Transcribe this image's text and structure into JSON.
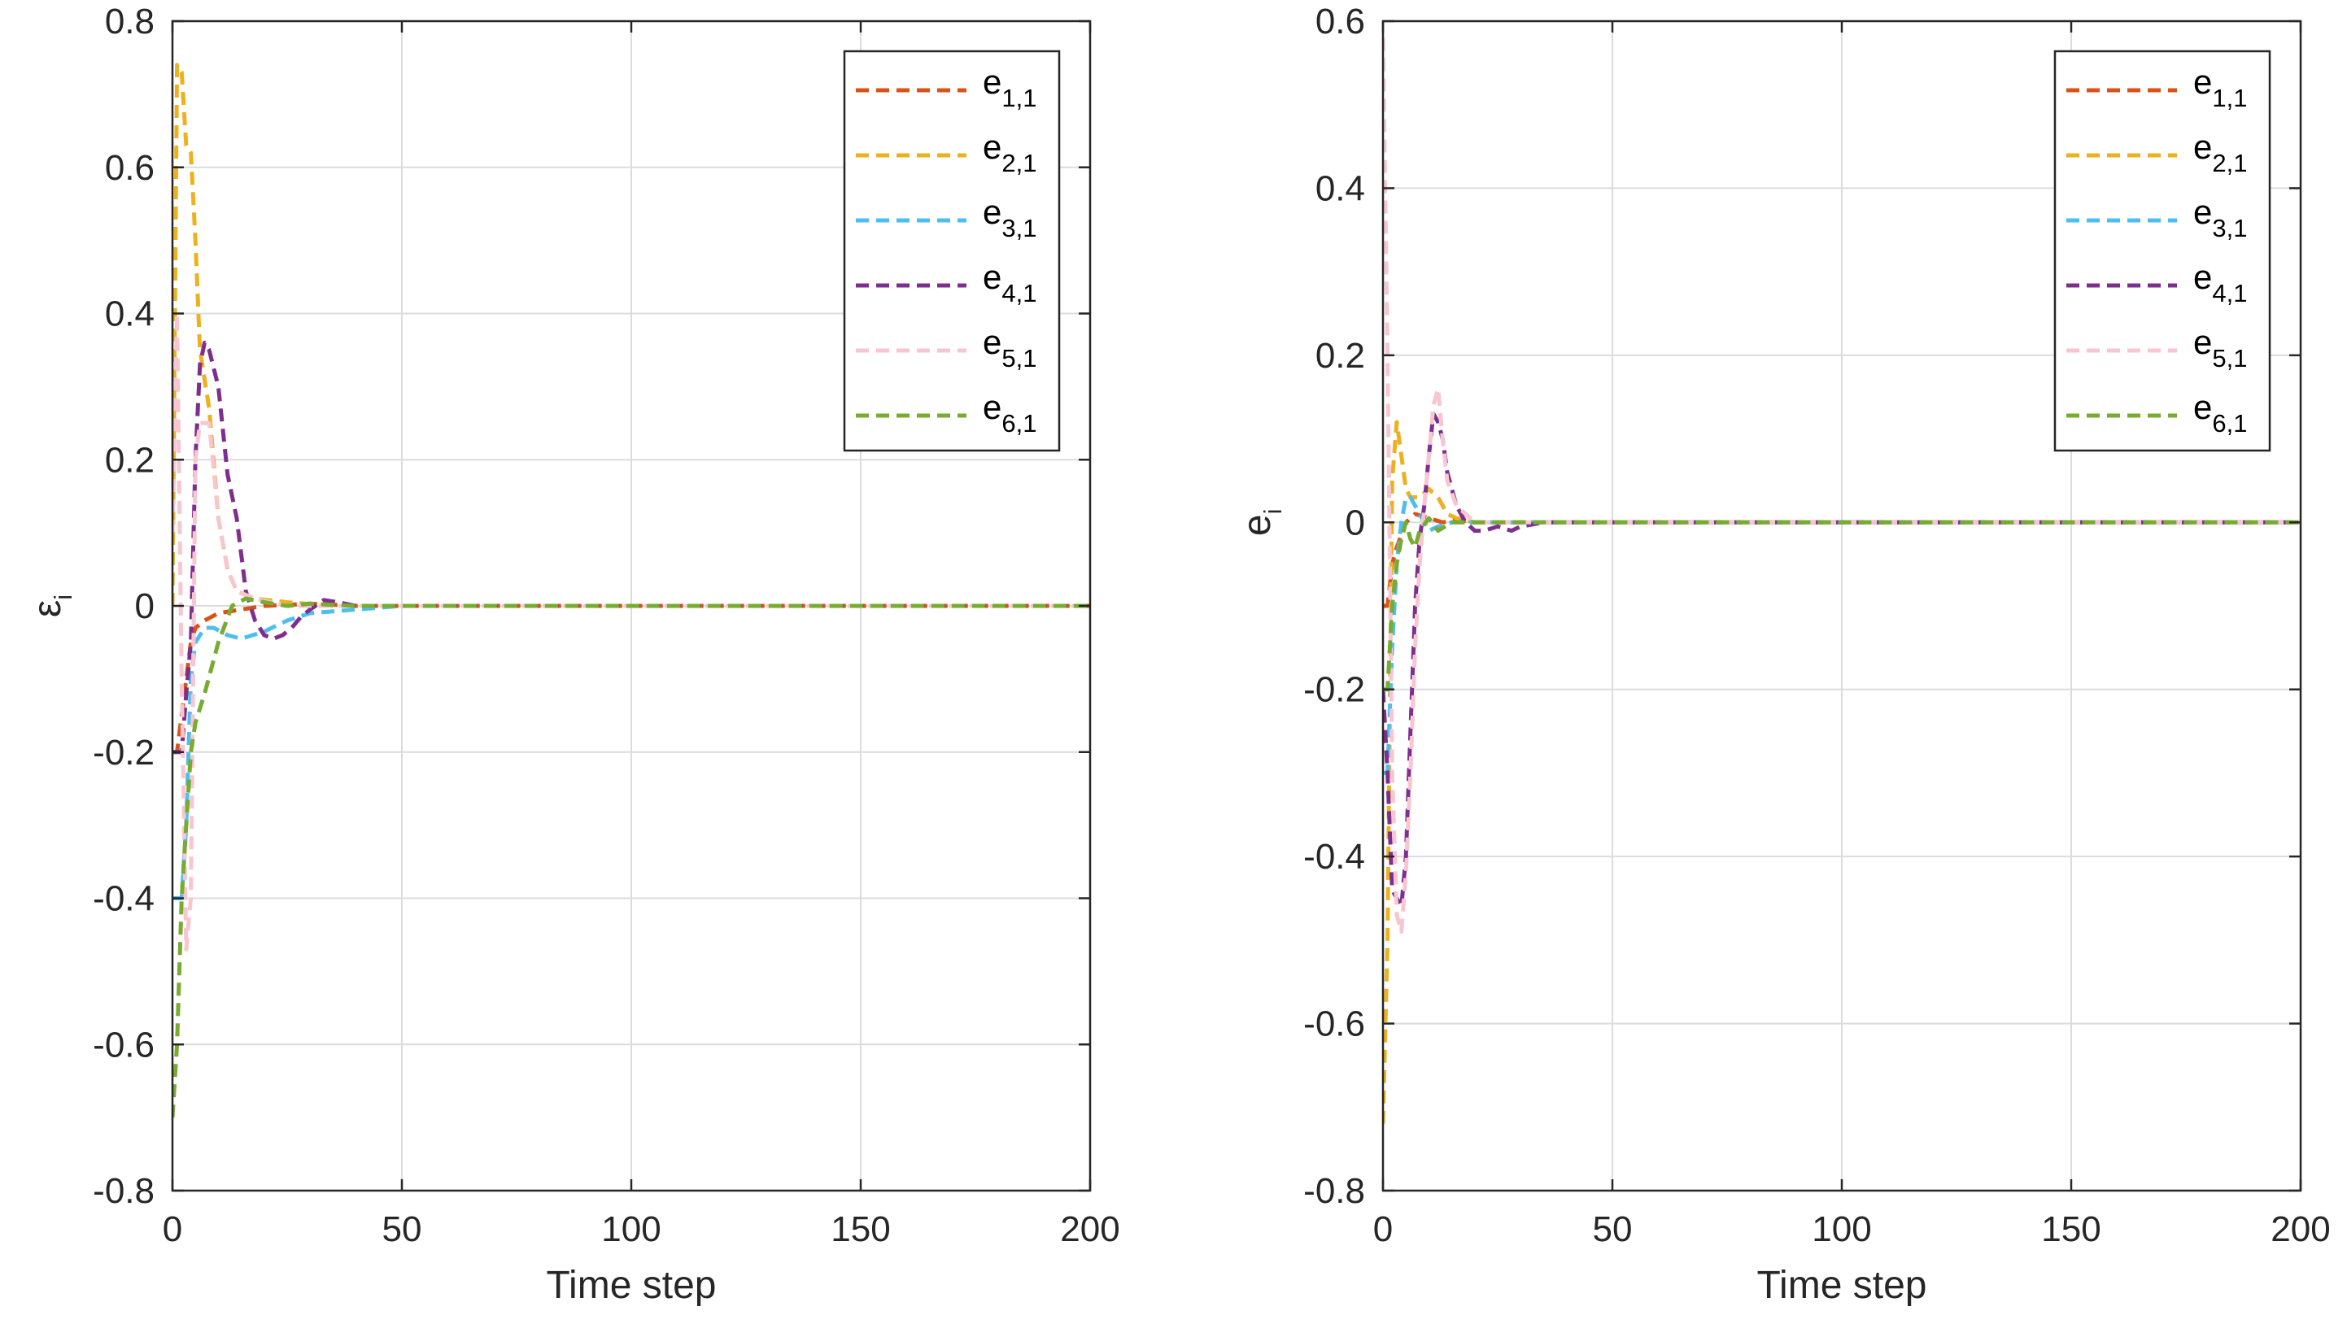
{
  "chart_data": [
    {
      "type": "line",
      "xlabel": "Time step",
      "ylabel": "ε",
      "ylabel_sub": "i",
      "xlim": [
        0,
        200
      ],
      "ylim": [
        -0.8,
        0.8
      ],
      "xticks": [
        0,
        50,
        100,
        150,
        200
      ],
      "xtick_labels": [
        "0",
        "50",
        "100",
        "150",
        "200"
      ],
      "yticks": [
        -0.8,
        -0.6,
        -0.4,
        -0.2,
        0,
        0.2,
        0.4,
        0.6,
        0.8
      ],
      "ytick_labels": [
        "-0.8",
        "-0.6",
        "-0.4",
        "-0.2",
        "0",
        "0.2",
        "0.4",
        "0.6",
        "0.8"
      ],
      "grid": true,
      "legend_position": "top-right",
      "series": [
        {
          "name": "e",
          "sub": "1,1",
          "color": "#D95319",
          "x": [
            0,
            1,
            2,
            3,
            4,
            5,
            7,
            10,
            15,
            20,
            30,
            40,
            50,
            200
          ],
          "y": [
            -0.2,
            -0.2,
            -0.15,
            -0.1,
            -0.05,
            -0.03,
            -0.02,
            -0.01,
            -0.005,
            0,
            0.003,
            0,
            0,
            0
          ]
        },
        {
          "name": "e",
          "sub": "2,1",
          "color": "#EDB120",
          "x": [
            0,
            1,
            2,
            3,
            4,
            5,
            6,
            8,
            10,
            12,
            14,
            18,
            25,
            35,
            50,
            200
          ],
          "y": [
            0,
            0.74,
            0.73,
            0.63,
            0.62,
            0.5,
            0.35,
            0.27,
            0.12,
            0.05,
            0.02,
            0.01,
            0.005,
            0,
            0,
            0
          ]
        },
        {
          "name": "e",
          "sub": "3,1",
          "color": "#4DBEEE",
          "x": [
            0,
            1,
            2,
            3,
            4,
            5,
            7,
            9,
            12,
            15,
            20,
            25,
            30,
            40,
            50,
            200
          ],
          "y": [
            -0.4,
            -0.4,
            -0.4,
            -0.3,
            -0.1,
            -0.05,
            -0.03,
            -0.03,
            -0.04,
            -0.045,
            -0.035,
            -0.02,
            -0.01,
            -0.005,
            0,
            0
          ]
        },
        {
          "name": "e",
          "sub": "4,1",
          "color": "#7E2F8E",
          "x": [
            0,
            2,
            3,
            4,
            5,
            6,
            7,
            8,
            10,
            12,
            14,
            16,
            18,
            20,
            22,
            24,
            26,
            28,
            30,
            33,
            36,
            40,
            50,
            200
          ],
          "y": [
            -0.2,
            -0.2,
            -0.12,
            -0.05,
            0.2,
            0.33,
            0.36,
            0.35,
            0.3,
            0.18,
            0.12,
            0.02,
            -0.02,
            -0.04,
            -0.045,
            -0.04,
            -0.03,
            -0.015,
            -0.005,
            0.008,
            0.005,
            0,
            0,
            0
          ]
        },
        {
          "name": "e",
          "sub": "5,1",
          "color": "#F7C6D0",
          "x": [
            0,
            1,
            2,
            3,
            4,
            5,
            6,
            8,
            10,
            12,
            14,
            18,
            25,
            35,
            50,
            200
          ],
          "y": [
            0.1,
            0.4,
            -0.1,
            -0.47,
            -0.4,
            0.2,
            0.25,
            0.25,
            0.12,
            0.05,
            0.02,
            0.01,
            0,
            0,
            0,
            0
          ]
        },
        {
          "name": "e",
          "sub": "6,1",
          "color": "#77AC30",
          "x": [
            0,
            1,
            2,
            3,
            4,
            5,
            7,
            10,
            13,
            16,
            20,
            25,
            30,
            40,
            50,
            200
          ],
          "y": [
            -0.7,
            -0.6,
            -0.4,
            -0.3,
            -0.2,
            -0.16,
            -0.12,
            -0.05,
            0,
            0.01,
            0.005,
            0,
            0.003,
            0,
            0,
            0
          ]
        }
      ]
    },
    {
      "type": "line",
      "xlabel": "Time step",
      "ylabel": "e",
      "ylabel_sub": "i",
      "xlim": [
        0,
        200
      ],
      "ylim": [
        -0.8,
        0.6
      ],
      "xticks": [
        0,
        50,
        100,
        150,
        200
      ],
      "xtick_labels": [
        "0",
        "50",
        "100",
        "150",
        "200"
      ],
      "yticks": [
        -0.8,
        -0.6,
        -0.4,
        -0.2,
        0,
        0.2,
        0.4,
        0.6
      ],
      "ytick_labels": [
        "-0.8",
        "-0.6",
        "-0.4",
        "-0.2",
        "0",
        "0.2",
        "0.4",
        "0.6"
      ],
      "grid": true,
      "legend_position": "top-right",
      "series": [
        {
          "name": "e",
          "sub": "1,1",
          "color": "#D95319",
          "x": [
            0,
            1,
            2,
            3,
            5,
            7,
            10,
            13,
            16,
            20,
            30,
            200
          ],
          "y": [
            -0.1,
            -0.1,
            -0.05,
            -0.03,
            0,
            0.01,
            0.005,
            0,
            0.003,
            0,
            0,
            0
          ]
        },
        {
          "name": "e",
          "sub": "2,1",
          "color": "#EDB120",
          "x": [
            0,
            1,
            2,
            3,
            4,
            5,
            6,
            7,
            8,
            10,
            12,
            14,
            16,
            20,
            30,
            200
          ],
          "y": [
            -0.72,
            -0.5,
            0.05,
            0.12,
            0.08,
            0.04,
            0.03,
            0.03,
            0.03,
            0.04,
            0.03,
            0.01,
            0.005,
            0,
            0,
            0
          ]
        },
        {
          "name": "e",
          "sub": "3,1",
          "color": "#4DBEEE",
          "x": [
            0,
            1,
            2,
            3,
            4,
            5,
            6,
            8,
            10,
            12,
            15,
            20,
            30,
            200
          ],
          "y": [
            -0.3,
            -0.3,
            -0.15,
            -0.05,
            0,
            0.03,
            0.03,
            0.01,
            -0.01,
            -0.005,
            0,
            0,
            0,
            0
          ]
        },
        {
          "name": "e",
          "sub": "4,1",
          "color": "#7E2F8E",
          "x": [
            0,
            1,
            2,
            3,
            4,
            5,
            6,
            7,
            8,
            9,
            10,
            11,
            12,
            13,
            14,
            16,
            18,
            20,
            22,
            25,
            28,
            30,
            35,
            200
          ],
          "y": [
            -0.2,
            -0.3,
            -0.44,
            -0.45,
            -0.46,
            -0.4,
            -0.25,
            -0.1,
            -0.02,
            0.02,
            0.08,
            0.13,
            0.12,
            0.1,
            0.06,
            0.02,
            0,
            -0.01,
            -0.01,
            -0.005,
            -0.01,
            -0.005,
            0,
            0
          ]
        },
        {
          "name": "e",
          "sub": "5,1",
          "color": "#F7C6D0",
          "x": [
            0,
            1,
            2,
            3,
            4,
            5,
            6,
            7,
            8,
            9,
            10,
            11,
            12,
            13,
            14,
            16,
            18,
            20,
            25,
            30,
            200
          ],
          "y": [
            0.58,
            0.2,
            -0.3,
            -0.47,
            -0.49,
            -0.42,
            -0.3,
            -0.15,
            -0.05,
            0.02,
            0.08,
            0.14,
            0.16,
            0.1,
            0.05,
            0.02,
            0.01,
            0,
            0,
            0,
            0
          ]
        },
        {
          "name": "e",
          "sub": "6,1",
          "color": "#77AC30",
          "x": [
            0,
            1,
            2,
            3,
            4,
            5,
            6,
            7,
            8,
            10,
            12,
            15,
            20,
            30,
            200
          ],
          "y": [
            -0.2,
            -0.2,
            -0.1,
            -0.05,
            -0.02,
            0,
            -0.02,
            -0.03,
            -0.01,
            0.005,
            -0.01,
            0,
            0,
            0,
            0
          ]
        }
      ]
    }
  ]
}
